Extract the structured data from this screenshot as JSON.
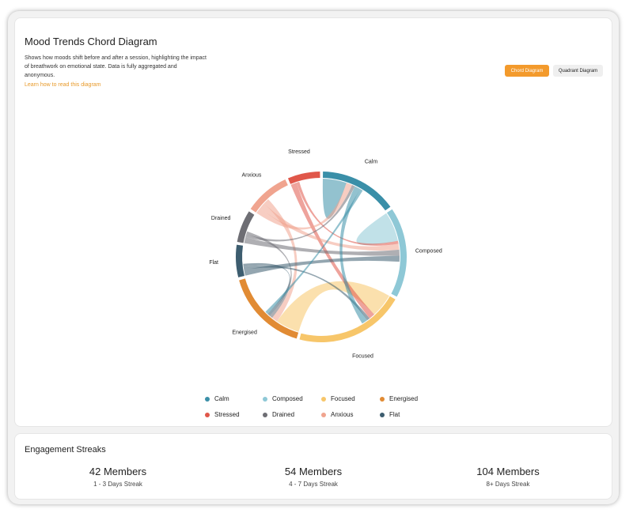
{
  "header": {
    "title": "Mood Trends Chord Diagram",
    "description": "Shows how moods shift before and after a session, highlighting the impact of breathwork on emotional state. Data is fully aggregated and anonymous.",
    "learn_link": "Learn how to read this diagram",
    "toggles": {
      "chord": "Chord Diagram",
      "quadrant": "Quadrant Diagram",
      "active": "chord"
    }
  },
  "chart_data": {
    "type": "chord",
    "groups": [
      {
        "name": "Calm",
        "color": "#3a8fa8",
        "size": 12
      },
      {
        "name": "Composed",
        "color": "#8ec8d6",
        "size": 14
      },
      {
        "name": "Focused",
        "color": "#f7c66a",
        "size": 17
      },
      {
        "name": "Energised",
        "color": "#e18b34",
        "size": 13
      },
      {
        "name": "Flat",
        "color": "#3d5d6f",
        "size": 5
      },
      {
        "name": "Drained",
        "color": "#6e6e74",
        "size": 5
      },
      {
        "name": "Anxious",
        "color": "#f0a48f",
        "size": 7
      },
      {
        "name": "Stressed",
        "color": "#e0574a",
        "size": 5
      }
    ],
    "ribbons": [
      {
        "source": "Focused",
        "target": "Energised",
        "value": 8
      },
      {
        "source": "Composed",
        "target": "Composed",
        "value": 5
      },
      {
        "source": "Calm",
        "target": "Calm",
        "value": 4
      },
      {
        "source": "Stressed",
        "target": "Focused",
        "value": 2
      },
      {
        "source": "Stressed",
        "target": "Composed",
        "value": 1
      },
      {
        "source": "Anxious",
        "target": "Calm",
        "value": 2
      },
      {
        "source": "Anxious",
        "target": "Composed",
        "value": 2
      },
      {
        "source": "Anxious",
        "target": "Energised",
        "value": 2
      },
      {
        "source": "Drained",
        "target": "Composed",
        "value": 2
      },
      {
        "source": "Drained",
        "target": "Calm",
        "value": 1
      },
      {
        "source": "Drained",
        "target": "Energised",
        "value": 1
      },
      {
        "source": "Flat",
        "target": "Composed",
        "value": 2
      },
      {
        "source": "Flat",
        "target": "Focused",
        "value": 1
      },
      {
        "source": "Flat",
        "target": "Energised",
        "value": 1
      },
      {
        "source": "Calm",
        "target": "Focused",
        "value": 2
      },
      {
        "source": "Calm",
        "target": "Energised",
        "value": 1
      }
    ]
  },
  "legend": [
    {
      "label": "Calm",
      "color": "#3a8fa8"
    },
    {
      "label": "Composed",
      "color": "#8ec8d6"
    },
    {
      "label": "Focused",
      "color": "#f7c66a"
    },
    {
      "label": "Energised",
      "color": "#e18b34"
    },
    {
      "label": "Stressed",
      "color": "#e0574a"
    },
    {
      "label": "Drained",
      "color": "#6e6e74"
    },
    {
      "label": "Anxious",
      "color": "#f0a48f"
    },
    {
      "label": "Flat",
      "color": "#3d5d6f"
    }
  ],
  "streaks": {
    "title": "Engagement Streaks",
    "items": [
      {
        "members": "42 Members",
        "label": "1 - 3 Days Streak"
      },
      {
        "members": "54 Members",
        "label": "4 - 7 Days Streak"
      },
      {
        "members": "104 Members",
        "label": "8+ Days Streak"
      }
    ]
  }
}
